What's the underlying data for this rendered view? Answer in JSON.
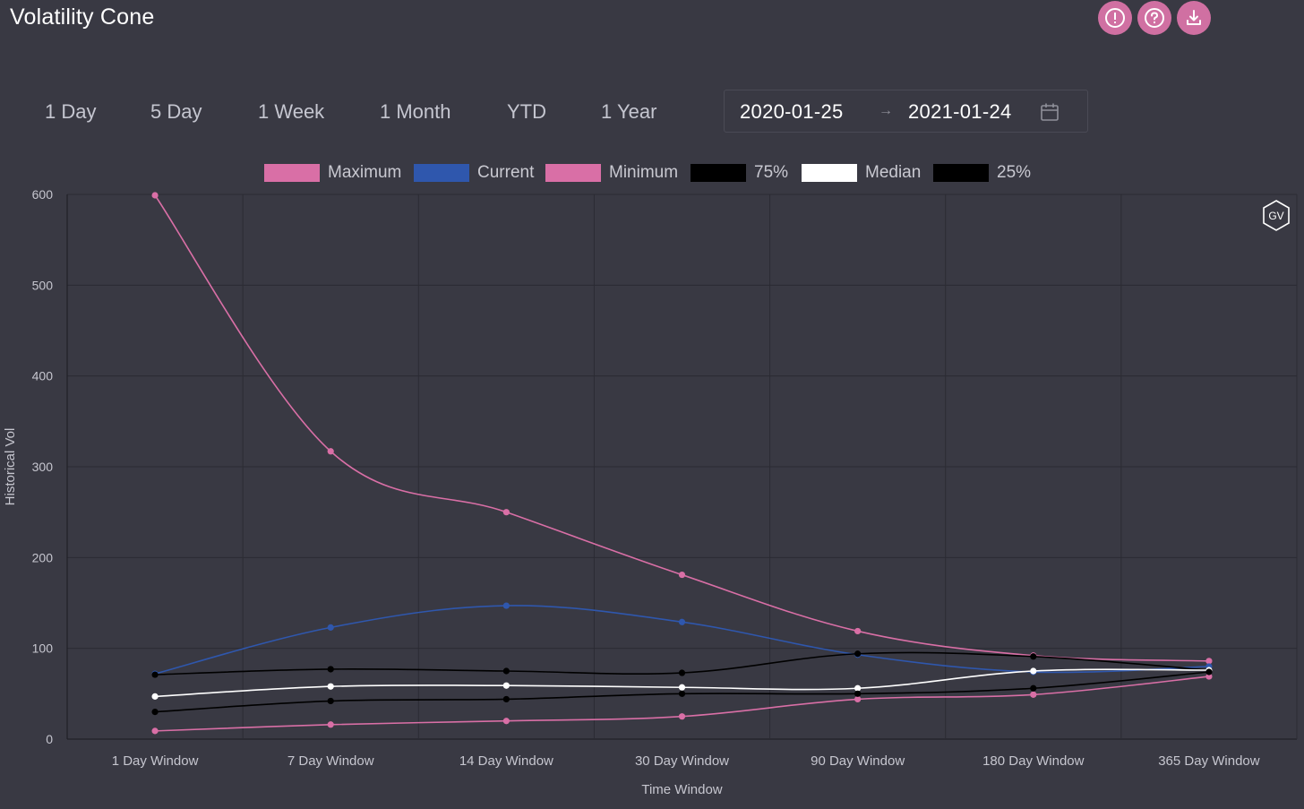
{
  "header": {
    "title": "Volatility Cone",
    "icons": [
      "alert-icon",
      "help-icon",
      "download-icon"
    ],
    "accent_color": "#d070a2"
  },
  "range_tabs": [
    {
      "label": "1 Day"
    },
    {
      "label": "5 Day"
    },
    {
      "label": "1 Week"
    },
    {
      "label": "1 Month"
    },
    {
      "label": "YTD"
    },
    {
      "label": "1 Year"
    }
  ],
  "date_range": {
    "start": "2020-01-25",
    "end": "2021-01-24",
    "icon": "calendar-icon"
  },
  "badge": {
    "label": "GV"
  },
  "chart_data": {
    "type": "line",
    "title": "",
    "xlabel": "Time Window",
    "ylabel": "Historical Vol",
    "ylim": [
      0,
      600
    ],
    "yticks": [
      0,
      100,
      200,
      300,
      400,
      500,
      600
    ],
    "categories": [
      "1 Day Window",
      "7 Day Window",
      "14 Day Window",
      "30 Day Window",
      "90 Day Window",
      "180 Day Window",
      "365 Day Window"
    ],
    "grid": true,
    "legend_position": "top",
    "series": [
      {
        "name": "Maximum",
        "color": "#d96fa6",
        "values": [
          599,
          317,
          250,
          181,
          119,
          92,
          86
        ]
      },
      {
        "name": "Current",
        "color": "#2f57ad",
        "values": [
          72,
          123,
          147,
          129,
          93,
          74,
          80
        ]
      },
      {
        "name": "Minimum",
        "color": "#d96fa6",
        "values": [
          9,
          16,
          20,
          25,
          44,
          49,
          69
        ]
      },
      {
        "name": "75%",
        "color": "#000000",
        "values": [
          71,
          77,
          75,
          73,
          94,
          91,
          76
        ]
      },
      {
        "name": "Median",
        "color": "#ffffff",
        "values": [
          47,
          58,
          59,
          57,
          56,
          75,
          76
        ]
      },
      {
        "name": "25%",
        "color": "#000000",
        "values": [
          30,
          42,
          44,
          50,
          50,
          56,
          74
        ]
      }
    ]
  }
}
